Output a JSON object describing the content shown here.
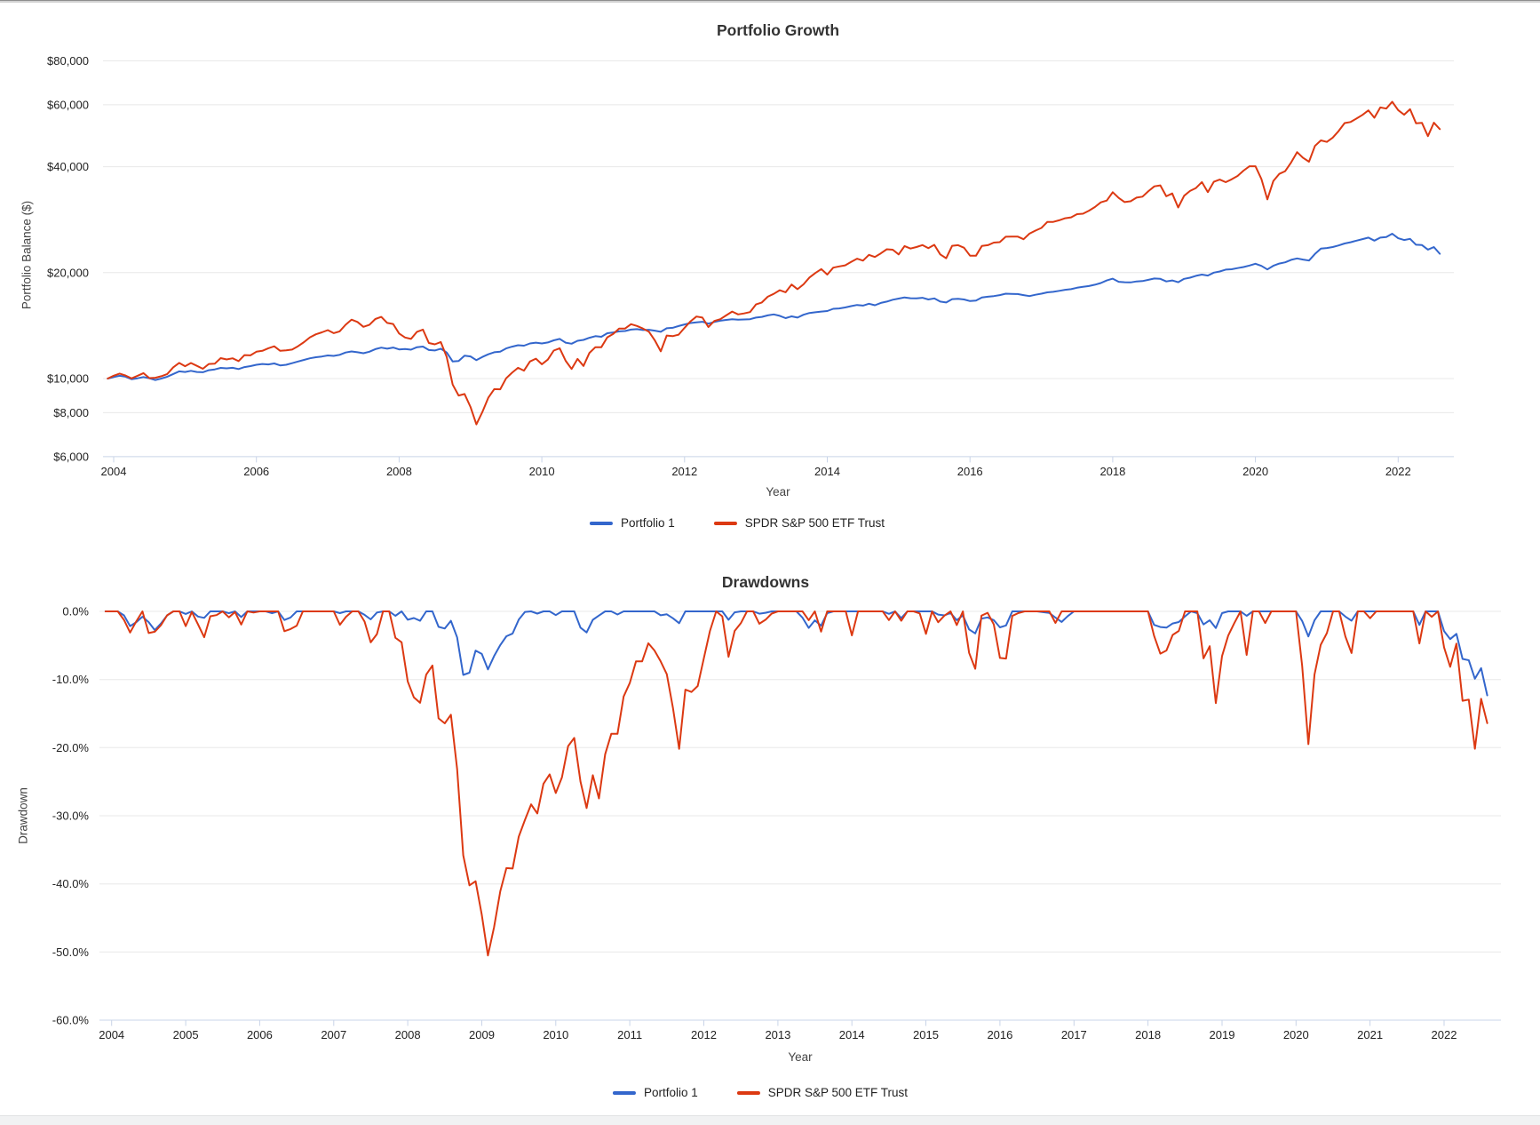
{
  "colors": {
    "portfolio1": "#3366CC",
    "spy": "#DC3912",
    "gridline": "#e8e8e8",
    "axis": "#c9d4e8",
    "tick_text": "#222222",
    "axis_title_text": "#444444",
    "title_text": "#333333"
  },
  "chart_data": [
    {
      "type": "line",
      "title": "Portfolio Growth",
      "xlabel": "Year",
      "ylabel": "Portfolio Balance ($)",
      "y_scale": "log",
      "x_start_year": 2003.9167,
      "points_per_year": 12,
      "x_ticks": [
        2004,
        2006,
        2008,
        2010,
        2012,
        2014,
        2016,
        2018,
        2020,
        2022
      ],
      "y_ticks": [
        {
          "label": "$80,000",
          "value": 80000
        },
        {
          "label": "$60,000",
          "value": 60000
        },
        {
          "label": "$40,000",
          "value": 40000
        },
        {
          "label": "$20,000",
          "value": 20000
        },
        {
          "label": "$10,000",
          "value": 10000
        },
        {
          "label": "$8,000",
          "value": 8000
        },
        {
          "label": "$6,000",
          "value": 6000,
          "baseline": true
        }
      ],
      "legend_position": "bottom",
      "grid": true,
      "series": [
        {
          "name": "Portfolio 1",
          "color": "#3366CC",
          "initial_balance": 10000,
          "values": [
            10000,
            10100,
            10180,
            10120,
            9960,
            10020,
            10100,
            10020,
            9900,
            10000,
            10120,
            10300,
            10480,
            10440,
            10520,
            10440,
            10420,
            10560,
            10620,
            10720,
            10690,
            10730,
            10640,
            10780,
            10850,
            10940,
            11000,
            10970,
            11040,
            10900,
            10940,
            11060,
            11180,
            11300,
            11420,
            11500,
            11550,
            11630,
            11600,
            11680,
            11860,
            11940,
            11880,
            11800,
            11920,
            12120,
            12240,
            12160,
            12250,
            12100,
            12130,
            12080,
            12280,
            12330,
            12050,
            12020,
            12160,
            11860,
            11180,
            11220,
            11620,
            11560,
            11280,
            11520,
            11720,
            11880,
            11930,
            12180,
            12320,
            12440,
            12400,
            12580,
            12650,
            12580,
            12660,
            12840,
            12960,
            12650,
            12560,
            12800,
            12880,
            13060,
            13200,
            13140,
            13450,
            13520,
            13620,
            13650,
            13780,
            13820,
            13740,
            13760,
            13680,
            13580,
            13900,
            13940,
            14100,
            14250,
            14380,
            14450,
            14500,
            14320,
            14480,
            14600,
            14680,
            14750,
            14700,
            14720,
            14750,
            14900,
            14970,
            15120,
            15220,
            15080,
            14850,
            15020,
            14900,
            15180,
            15360,
            15430,
            15500,
            15560,
            15780,
            15820,
            15920,
            16060,
            16180,
            16120,
            16320,
            16160,
            16400,
            16550,
            16750,
            16880,
            17000,
            16920,
            16900,
            16960,
            16780,
            16900,
            16550,
            16450,
            16820,
            16850,
            16780,
            16600,
            16650,
            17000,
            17080,
            17150,
            17260,
            17420,
            17400,
            17380,
            17260,
            17150,
            17300,
            17420,
            17580,
            17640,
            17750,
            17880,
            17950,
            18120,
            18220,
            18320,
            18480,
            18680,
            19000,
            19220,
            18840,
            18780,
            18760,
            18880,
            18920,
            19080,
            19250,
            19200,
            18880,
            19000,
            18780,
            19200,
            19350,
            19580,
            19750,
            19620,
            20000,
            20150,
            20400,
            20450,
            20600,
            20750,
            20950,
            21200,
            20900,
            20420,
            20920,
            21220,
            21400,
            21750,
            21950,
            21780,
            21650,
            22600,
            23400,
            23500,
            23650,
            23900,
            24200,
            24400,
            24650,
            24900,
            25150,
            24650,
            25150,
            25250,
            25800,
            25050,
            24750,
            24950,
            24000,
            23950,
            23250,
            23650,
            22620
          ]
        },
        {
          "name": "SPDR S&P 500 ETF Trust",
          "color": "#DC3912",
          "initial_balance": 10000,
          "values": [
            10000,
            10190,
            10330,
            10200,
            10010,
            10180,
            10360,
            10030,
            10050,
            10150,
            10300,
            10760,
            11080,
            10840,
            11070,
            10870,
            10660,
            11000,
            11020,
            11430,
            11330,
            11420,
            11210,
            11660,
            11640,
            11920,
            11990,
            12190,
            12350,
            11990,
            12030,
            12090,
            12360,
            12690,
            13100,
            13360,
            13530,
            13730,
            13460,
            13620,
            14220,
            14700,
            14480,
            14030,
            14210,
            14760,
            14970,
            14390,
            14290,
            13430,
            13080,
            12960,
            13580,
            13780,
            12620,
            12510,
            12700,
            11510,
            9610,
            8950,
            9040,
            8300,
            7410,
            8030,
            8820,
            9330,
            9320,
            10020,
            10390,
            10730,
            10530,
            11180,
            11390,
            10980,
            11320,
            12010,
            12190,
            11230,
            10650,
            11370,
            10860,
            11830,
            12280,
            12280,
            13100,
            13400,
            13870,
            13870,
            14270,
            14110,
            13870,
            13590,
            12840,
            11950,
            13250,
            13200,
            13330,
            13940,
            14540,
            15010,
            14900,
            14010,
            14580,
            14750,
            15120,
            15500,
            15220,
            15310,
            15450,
            16240,
            16450,
            17080,
            17400,
            17820,
            17590,
            18500,
            17950,
            18520,
            19370,
            19950,
            20470,
            19750,
            20660,
            20830,
            20980,
            21460,
            21910,
            21630,
            22470,
            22160,
            22690,
            23300,
            23230,
            22530,
            23790,
            23410,
            23640,
            23950,
            23470,
            23990,
            22530,
            21970,
            23840,
            23940,
            23530,
            22350,
            22330,
            23830,
            23930,
            24340,
            24410,
            25290,
            25320,
            25320,
            24890,
            25810,
            26330,
            26800,
            27850,
            27880,
            28160,
            28550,
            28720,
            29320,
            29410,
            30000,
            30720,
            31670,
            32050,
            33840,
            32620,
            31740,
            31900,
            32670,
            32870,
            34090,
            35180,
            35390,
            32950,
            33580,
            30620,
            33070,
            34130,
            34780,
            36170,
            33860,
            36230,
            36770,
            36140,
            36830,
            37640,
            38990,
            40120,
            40120,
            36910,
            32300,
            36400,
            38150,
            38840,
            41130,
            44010,
            42380,
            41320,
            45820,
            47520,
            47040,
            48360,
            50540,
            53220,
            53590,
            54820,
            56140,
            57820,
            55100,
            58960,
            58490,
            61180,
            57940,
            56200,
            58280,
            53150,
            53260,
            48840,
            53330,
            51140
          ]
        }
      ]
    },
    {
      "type": "line",
      "title": "Drawdowns",
      "xlabel": "Year",
      "ylabel": "Drawdown",
      "y_scale": "linear",
      "x_start_year": 2003.9167,
      "points_per_year": 12,
      "x_ticks": [
        2004,
        2005,
        2006,
        2007,
        2008,
        2009,
        2010,
        2011,
        2012,
        2013,
        2014,
        2015,
        2016,
        2017,
        2018,
        2019,
        2020,
        2021,
        2022
      ],
      "y_ticks": [
        {
          "label": "0.0%",
          "value": 0
        },
        {
          "label": "-10.0%",
          "value": -10
        },
        {
          "label": "-20.0%",
          "value": -20
        },
        {
          "label": "-30.0%",
          "value": -30
        },
        {
          "label": "-40.0%",
          "value": -40
        },
        {
          "label": "-50.0%",
          "value": -50
        },
        {
          "label": "-60.0%",
          "value": -60,
          "baseline": true
        }
      ],
      "legend_position": "bottom",
      "grid": true,
      "series": [
        {
          "name": "Portfolio 1",
          "color": "#3366CC",
          "derived_from": "chart_data.0.series.0.values",
          "formula": "drawdown_pct = balance / running_max(balance) - 1"
        },
        {
          "name": "SPDR S&P 500 ETF Trust",
          "color": "#DC3912",
          "derived_from": "chart_data.0.series.1.values",
          "formula": "drawdown_pct = balance / running_max(balance) - 1"
        }
      ]
    }
  ]
}
